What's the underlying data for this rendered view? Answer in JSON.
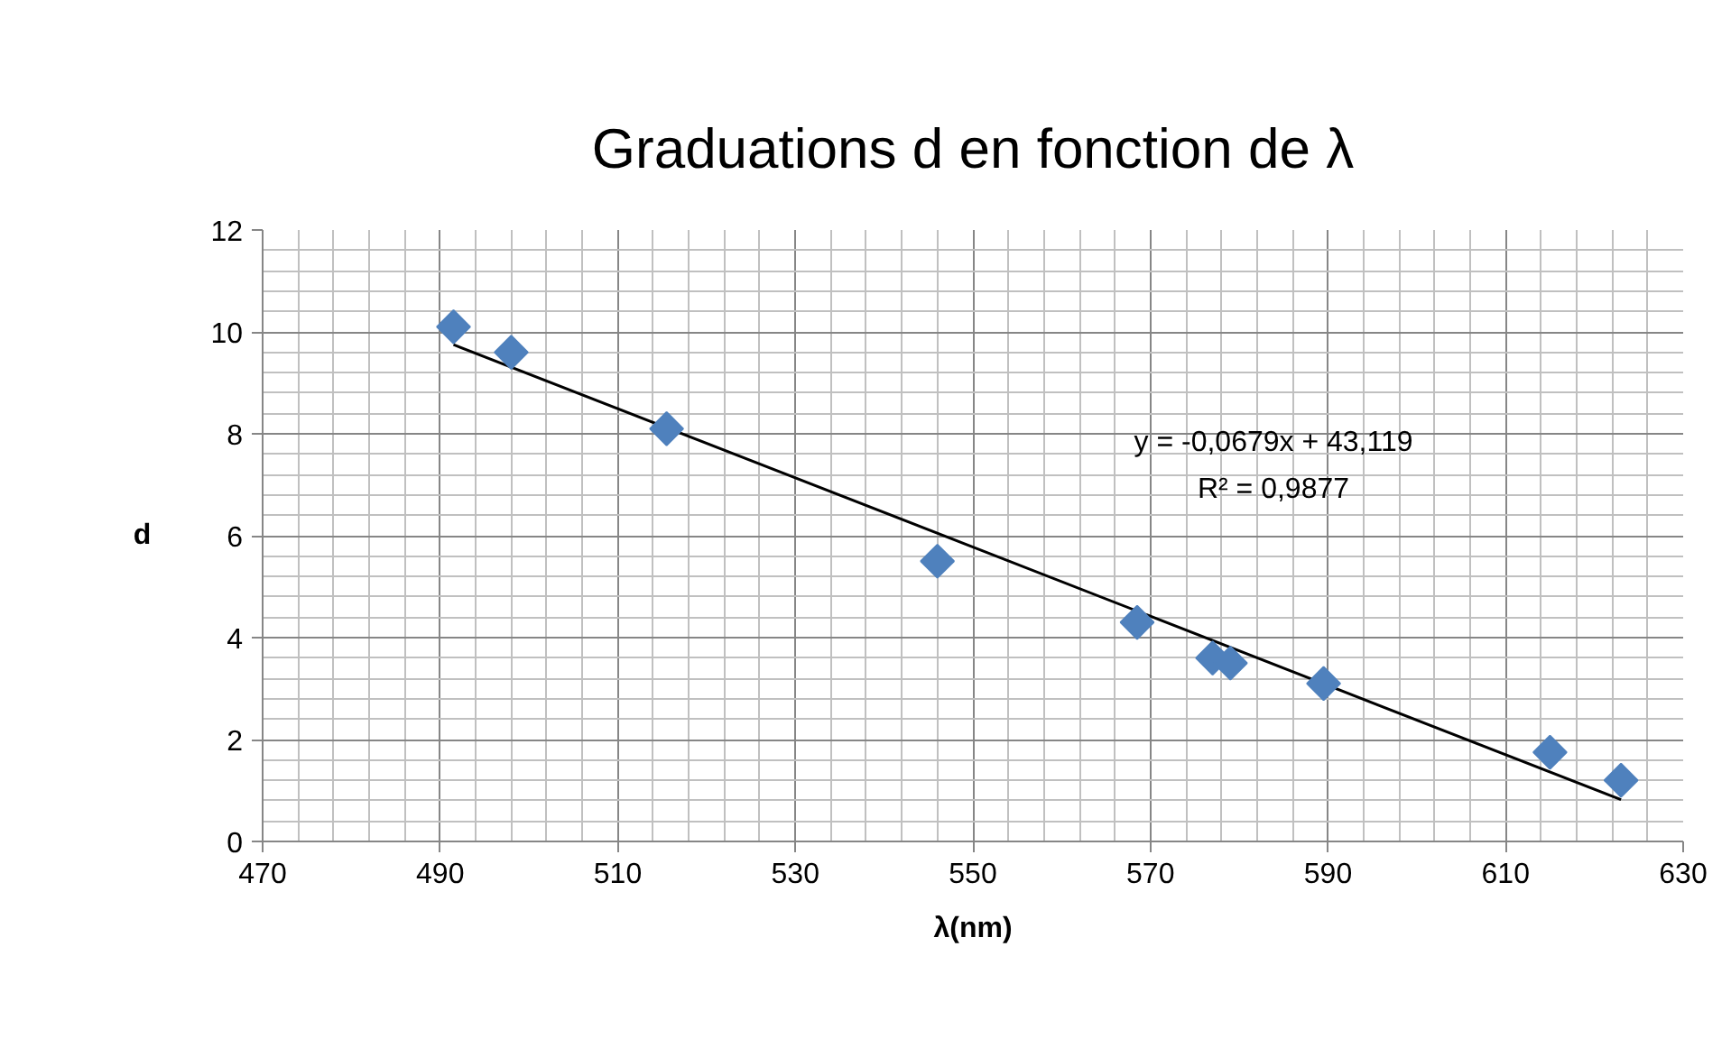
{
  "chart_data": {
    "type": "scatter",
    "title": "Graduations d en fonction de λ",
    "xlabel": "λ(nm)",
    "ylabel": "d",
    "xlim": [
      470,
      630
    ],
    "xticks": [
      470,
      490,
      510,
      530,
      550,
      570,
      590,
      610,
      630
    ],
    "ylim": [
      0,
      12
    ],
    "yticks": [
      0,
      2,
      4,
      6,
      8,
      10,
      12
    ],
    "grid": true,
    "annotations": [
      "y = -0,0679x + 43,119",
      "R² = 0,9877"
    ],
    "series": [
      {
        "marker": "diamond",
        "color": "#4f81bd",
        "x": [
          491.5,
          498,
          515.5,
          546,
          568.5,
          577,
          579,
          589.5,
          615,
          623
        ],
        "values": [
          10.1,
          9.6,
          8.1,
          5.5,
          4.3,
          3.6,
          3.5,
          3.1,
          1.75,
          1.2
        ]
      },
      {
        "type": "line",
        "color": "#000000",
        "x": [
          491.5,
          623
        ],
        "values": [
          9.75,
          0.82
        ]
      }
    ]
  }
}
